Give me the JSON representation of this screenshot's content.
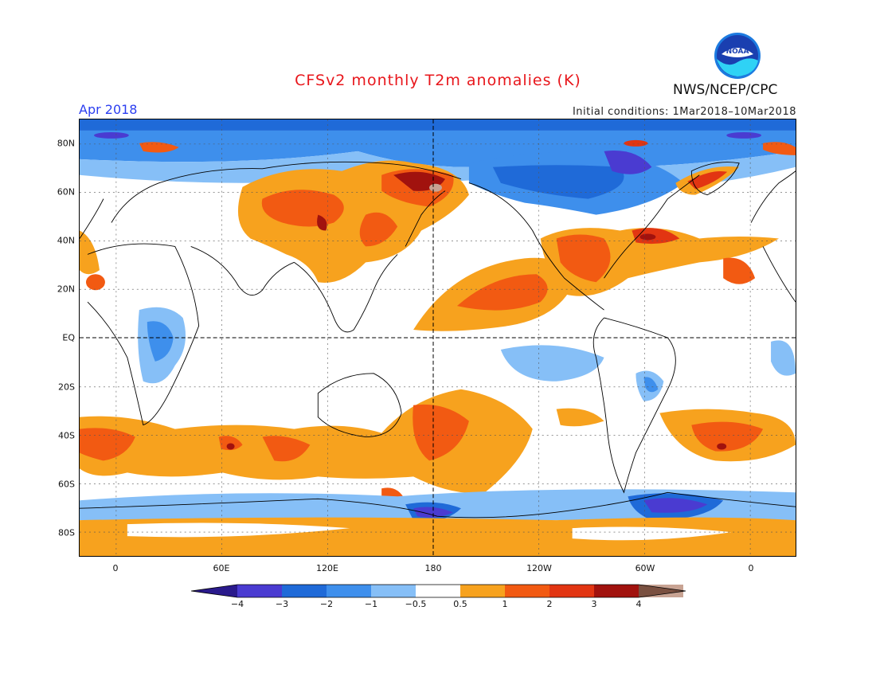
{
  "title": "CFSv2 monthly T2m anomalies (K)",
  "month": "Apr 2018",
  "initial_conditions": "Initial conditions: 1Mar2018–10Mar2018",
  "agency": "NWS/NCEP/CPC",
  "logo_text": "NOAA",
  "colors": {
    "title": "#e8161b",
    "month": "#2b3ef0",
    "neg4": "#2a1a8c",
    "neg3": "#4a3bd1",
    "neg2": "#1f6ad8",
    "neg1": "#3e8fec",
    "neg05": "#86bff7",
    "zero": "#ffffff",
    "pos05": "#f7a21e",
    "pos1": "#f25a12",
    "pos2": "#e23512",
    "pos3": "#a1120e",
    "pos4": "#c8a393",
    "pos5": "#7a5040"
  },
  "lat_labels": [
    "80N",
    "60N",
    "40N",
    "20N",
    "EQ",
    "20S",
    "40S",
    "60S",
    "80S"
  ],
  "lon_labels": [
    "0",
    "60E",
    "120E",
    "180",
    "120W",
    "60W",
    "0"
  ],
  "colorbar": {
    "labels": [
      "−4",
      "−3",
      "−2",
      "−1",
      "−0.5",
      "0.5",
      "1",
      "2",
      "3",
      "4"
    ],
    "bins": [
      "neg4",
      "neg3",
      "neg2",
      "neg1",
      "neg05",
      "zero",
      "pos05",
      "pos1",
      "pos2",
      "pos3",
      "pos4",
      "pos5"
    ]
  }
}
